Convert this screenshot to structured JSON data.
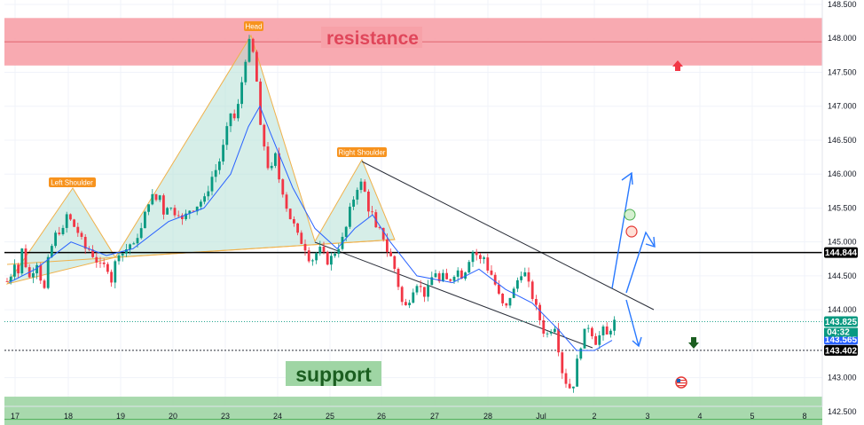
{
  "chart_data": {
    "type": "candlestick",
    "ylim": [
      142.0,
      148.5
    ],
    "y_ticks": [
      "148.500",
      "148.000",
      "147.500",
      "147.000",
      "146.500",
      "146.000",
      "145.500",
      "145.000",
      "144.500",
      "144.000",
      "143.000",
      "142.500"
    ],
    "x_ticks": [
      "17",
      "18",
      "19",
      "20",
      "23",
      "24",
      "25",
      "26",
      "27",
      "28",
      "Jul",
      "2",
      "3",
      "4",
      "5",
      "8"
    ],
    "zones": [
      {
        "label": "resistance",
        "from": 147.6,
        "to": 148.3,
        "color": "#f7a1a8"
      },
      {
        "label": "support",
        "from": 142.05,
        "to": 142.72,
        "color": "#9fd5a4"
      }
    ],
    "pattern_labels": [
      "Left Shoulder",
      "Head",
      "Right Shoulder"
    ],
    "levels": [
      {
        "value": 144.844,
        "label": "144.844",
        "style": "solid",
        "badge_color": "#000000"
      },
      {
        "value": 143.825,
        "label": "143.825",
        "style": "dotted",
        "badge_color": "#089981"
      },
      {
        "value": 143.565,
        "label": "143.565",
        "style": "none",
        "badge_color": "#2962ff"
      },
      {
        "value": 143.402,
        "label": "143.402",
        "style": "dashed",
        "badge_color": "#000000"
      }
    ],
    "countdown": "04:32",
    "price_path": [
      [
        0,
        143.9
      ],
      [
        5,
        144.6
      ],
      [
        10,
        144.3
      ],
      [
        15,
        144.8
      ],
      [
        20,
        144.5
      ],
      [
        25,
        144.9
      ],
      [
        30,
        144.6
      ],
      [
        35,
        144.4
      ],
      [
        40,
        144.8
      ],
      [
        45,
        144.5
      ],
      [
        50,
        144.3
      ],
      [
        55,
        144.8
      ],
      [
        60,
        145.0
      ],
      [
        65,
        145.2
      ],
      [
        70,
        145.1
      ],
      [
        75,
        145.4
      ],
      [
        80,
        145.3
      ],
      [
        85,
        145.2
      ],
      [
        90,
        145.1
      ],
      [
        95,
        144.9
      ],
      [
        100,
        144.9
      ],
      [
        105,
        144.8
      ],
      [
        110,
        144.7
      ],
      [
        115,
        144.6
      ],
      [
        120,
        144.7
      ],
      [
        125,
        144.4
      ],
      [
        130,
        144.7
      ],
      [
        135,
        144.9
      ],
      [
        140,
        144.8
      ],
      [
        145,
        145.0
      ],
      [
        150,
        144.9
      ],
      [
        155,
        145.1
      ],
      [
        160,
        145.2
      ],
      [
        165,
        145.5
      ],
      [
        170,
        145.7
      ],
      [
        175,
        145.6
      ],
      [
        180,
        145.7
      ],
      [
        185,
        145.4
      ],
      [
        190,
        145.6
      ],
      [
        195,
        145.4
      ],
      [
        200,
        145.5
      ],
      [
        205,
        145.3
      ],
      [
        210,
        145.4
      ],
      [
        215,
        145.5
      ],
      [
        220,
        145.5
      ],
      [
        225,
        145.6
      ],
      [
        230,
        145.6
      ],
      [
        235,
        145.8
      ],
      [
        240,
        146.0
      ],
      [
        245,
        146.1
      ],
      [
        250,
        146.3
      ],
      [
        255,
        146.6
      ],
      [
        260,
        146.9
      ],
      [
        265,
        146.8
      ],
      [
        270,
        147.1
      ],
      [
        275,
        147.6
      ],
      [
        280,
        147.9
      ],
      [
        283,
        148.0
      ],
      [
        286,
        147.7
      ],
      [
        290,
        147.3
      ],
      [
        293,
        146.7
      ],
      [
        297,
        146.5
      ],
      [
        300,
        146.2
      ],
      [
        305,
        146.0
      ],
      [
        310,
        146.3
      ],
      [
        315,
        145.9
      ],
      [
        320,
        145.7
      ],
      [
        325,
        145.4
      ],
      [
        330,
        145.3
      ],
      [
        335,
        145.1
      ],
      [
        340,
        145.0
      ],
      [
        345,
        144.9
      ],
      [
        350,
        144.7
      ],
      [
        355,
        144.8
      ],
      [
        360,
        144.9
      ],
      [
        365,
        144.8
      ],
      [
        370,
        144.7
      ],
      [
        375,
        144.8
      ],
      [
        380,
        144.9
      ],
      [
        385,
        145.0
      ],
      [
        390,
        145.2
      ],
      [
        395,
        145.5
      ],
      [
        400,
        145.7
      ],
      [
        405,
        145.9
      ],
      [
        410,
        145.8
      ],
      [
        415,
        145.5
      ],
      [
        420,
        145.4
      ],
      [
        425,
        145.1
      ],
      [
        430,
        145.2
      ],
      [
        435,
        144.9
      ],
      [
        440,
        144.8
      ],
      [
        445,
        144.6
      ],
      [
        450,
        144.3
      ],
      [
        455,
        144.0
      ],
      [
        460,
        144.1
      ],
      [
        465,
        144.3
      ],
      [
        470,
        144.4
      ],
      [
        475,
        144.3
      ],
      [
        480,
        144.2
      ],
      [
        485,
        144.4
      ],
      [
        490,
        144.6
      ],
      [
        495,
        144.4
      ],
      [
        500,
        144.5
      ],
      [
        505,
        144.4
      ],
      [
        510,
        144.5
      ],
      [
        515,
        144.6
      ],
      [
        520,
        144.5
      ],
      [
        525,
        144.6
      ],
      [
        530,
        144.8
      ],
      [
        535,
        144.9
      ],
      [
        540,
        144.7
      ],
      [
        545,
        144.8
      ],
      [
        550,
        144.6
      ],
      [
        555,
        144.5
      ],
      [
        560,
        144.3
      ],
      [
        565,
        144.1
      ],
      [
        570,
        144.0
      ],
      [
        575,
        144.2
      ],
      [
        580,
        144.3
      ],
      [
        585,
        144.5
      ],
      [
        590,
        144.6
      ],
      [
        595,
        144.4
      ],
      [
        600,
        144.2
      ],
      [
        605,
        144.0
      ],
      [
        610,
        143.8
      ],
      [
        615,
        143.6
      ],
      [
        620,
        143.7
      ],
      [
        625,
        143.8
      ],
      [
        630,
        143.4
      ],
      [
        635,
        143.0
      ],
      [
        640,
        142.9
      ],
      [
        645,
        142.8
      ],
      [
        650,
        143.2
      ],
      [
        655,
        143.5
      ],
      [
        660,
        143.7
      ],
      [
        665,
        143.8
      ],
      [
        670,
        143.5
      ],
      [
        675,
        143.6
      ],
      [
        680,
        143.7
      ],
      [
        685,
        143.6
      ],
      [
        690,
        143.8
      ],
      [
        693,
        143.825
      ]
    ],
    "ma_path": [
      [
        10,
        144.4
      ],
      [
        40,
        144.6
      ],
      [
        80,
        145.0
      ],
      [
        120,
        144.8
      ],
      [
        150,
        144.9
      ],
      [
        190,
        145.3
      ],
      [
        230,
        145.5
      ],
      [
        260,
        146.0
      ],
      [
        280,
        146.7
      ],
      [
        293,
        147.0
      ],
      [
        305,
        146.6
      ],
      [
        330,
        145.8
      ],
      [
        355,
        145.2
      ],
      [
        380,
        144.9
      ],
      [
        400,
        145.2
      ],
      [
        420,
        145.4
      ],
      [
        440,
        145.0
      ],
      [
        470,
        144.5
      ],
      [
        510,
        144.4
      ],
      [
        540,
        144.6
      ],
      [
        570,
        144.3
      ],
      [
        600,
        144.1
      ],
      [
        630,
        143.7
      ],
      [
        650,
        143.4
      ],
      [
        670,
        143.4
      ],
      [
        690,
        143.55
      ]
    ]
  }
}
